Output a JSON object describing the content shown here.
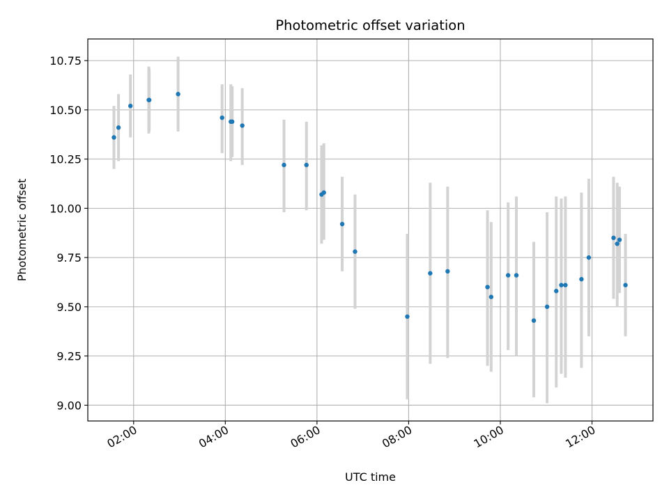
{
  "chart_data": {
    "type": "scatter",
    "title": "Photometric offset variation",
    "xlabel": "UTC time",
    "ylabel": "Photometric offset",
    "x_unit": "hour",
    "xlim": [
      1.0,
      13.33
    ],
    "ylim": [
      8.92,
      10.86
    ],
    "x_ticks": [
      {
        "value": 2,
        "label": "02:00"
      },
      {
        "value": 4,
        "label": "04:00"
      },
      {
        "value": 6,
        "label": "06:00"
      },
      {
        "value": 8,
        "label": "08:00"
      },
      {
        "value": 10,
        "label": "10:00"
      },
      {
        "value": 12,
        "label": "12:00"
      }
    ],
    "y_ticks": [
      {
        "value": 9.0,
        "label": "9.00"
      },
      {
        "value": 9.25,
        "label": "9.25"
      },
      {
        "value": 9.5,
        "label": "9.50"
      },
      {
        "value": 9.75,
        "label": "9.75"
      },
      {
        "value": 10.0,
        "label": "10.00"
      },
      {
        "value": 10.25,
        "label": "10.25"
      },
      {
        "value": 10.5,
        "label": "10.50"
      },
      {
        "value": 10.75,
        "label": "10.75"
      }
    ],
    "grid": true,
    "point_color": "#1f77b4",
    "errorbar_color": "#d3d3d3",
    "points": [
      {
        "x": 1.57,
        "y": 10.36,
        "lo": 10.2,
        "hi": 10.52
      },
      {
        "x": 1.67,
        "y": 10.41,
        "lo": 10.24,
        "hi": 10.58
      },
      {
        "x": 1.93,
        "y": 10.52,
        "lo": 10.36,
        "hi": 10.68
      },
      {
        "x": 2.33,
        "y": 10.55,
        "lo": 10.38,
        "hi": 10.72
      },
      {
        "x": 2.34,
        "y": 10.55,
        "lo": 10.39,
        "hi": 10.71
      },
      {
        "x": 2.97,
        "y": 10.58,
        "lo": 10.39,
        "hi": 10.77
      },
      {
        "x": 3.93,
        "y": 10.46,
        "lo": 10.28,
        "hi": 10.63
      },
      {
        "x": 4.12,
        "y": 10.44,
        "lo": 10.24,
        "hi": 10.63
      },
      {
        "x": 4.15,
        "y": 10.44,
        "lo": 10.26,
        "hi": 10.62
      },
      {
        "x": 4.37,
        "y": 10.42,
        "lo": 10.22,
        "hi": 10.61
      },
      {
        "x": 5.28,
        "y": 10.22,
        "lo": 9.98,
        "hi": 10.45
      },
      {
        "x": 5.77,
        "y": 10.22,
        "lo": 9.99,
        "hi": 10.44
      },
      {
        "x": 6.1,
        "y": 10.07,
        "lo": 9.82,
        "hi": 10.32
      },
      {
        "x": 6.15,
        "y": 10.08,
        "lo": 9.84,
        "hi": 10.33
      },
      {
        "x": 6.55,
        "y": 9.92,
        "lo": 9.68,
        "hi": 10.16
      },
      {
        "x": 6.83,
        "y": 9.78,
        "lo": 9.49,
        "hi": 10.07
      },
      {
        "x": 7.97,
        "y": 9.45,
        "lo": 9.03,
        "hi": 9.87
      },
      {
        "x": 8.47,
        "y": 9.67,
        "lo": 9.21,
        "hi": 10.13
      },
      {
        "x": 8.85,
        "y": 9.68,
        "lo": 9.24,
        "hi": 10.11
      },
      {
        "x": 9.72,
        "y": 9.6,
        "lo": 9.2,
        "hi": 9.99
      },
      {
        "x": 9.8,
        "y": 9.55,
        "lo": 9.17,
        "hi": 9.93
      },
      {
        "x": 10.17,
        "y": 9.66,
        "lo": 9.28,
        "hi": 10.03
      },
      {
        "x": 10.35,
        "y": 9.66,
        "lo": 9.25,
        "hi": 10.06
      },
      {
        "x": 10.73,
        "y": 9.43,
        "lo": 9.04,
        "hi": 9.83
      },
      {
        "x": 11.02,
        "y": 9.5,
        "lo": 9.01,
        "hi": 9.98
      },
      {
        "x": 11.22,
        "y": 9.58,
        "lo": 9.09,
        "hi": 10.06
      },
      {
        "x": 11.33,
        "y": 9.61,
        "lo": 9.16,
        "hi": 10.05
      },
      {
        "x": 11.42,
        "y": 9.61,
        "lo": 9.14,
        "hi": 10.06
      },
      {
        "x": 11.77,
        "y": 9.64,
        "lo": 9.19,
        "hi": 10.08
      },
      {
        "x": 11.93,
        "y": 9.75,
        "lo": 9.35,
        "hi": 10.15
      },
      {
        "x": 12.47,
        "y": 9.85,
        "lo": 9.54,
        "hi": 10.16
      },
      {
        "x": 12.55,
        "y": 9.82,
        "lo": 9.5,
        "hi": 10.13
      },
      {
        "x": 12.6,
        "y": 9.84,
        "lo": 9.57,
        "hi": 10.11
      },
      {
        "x": 12.73,
        "y": 9.61,
        "lo": 9.35,
        "hi": 9.87
      }
    ]
  }
}
